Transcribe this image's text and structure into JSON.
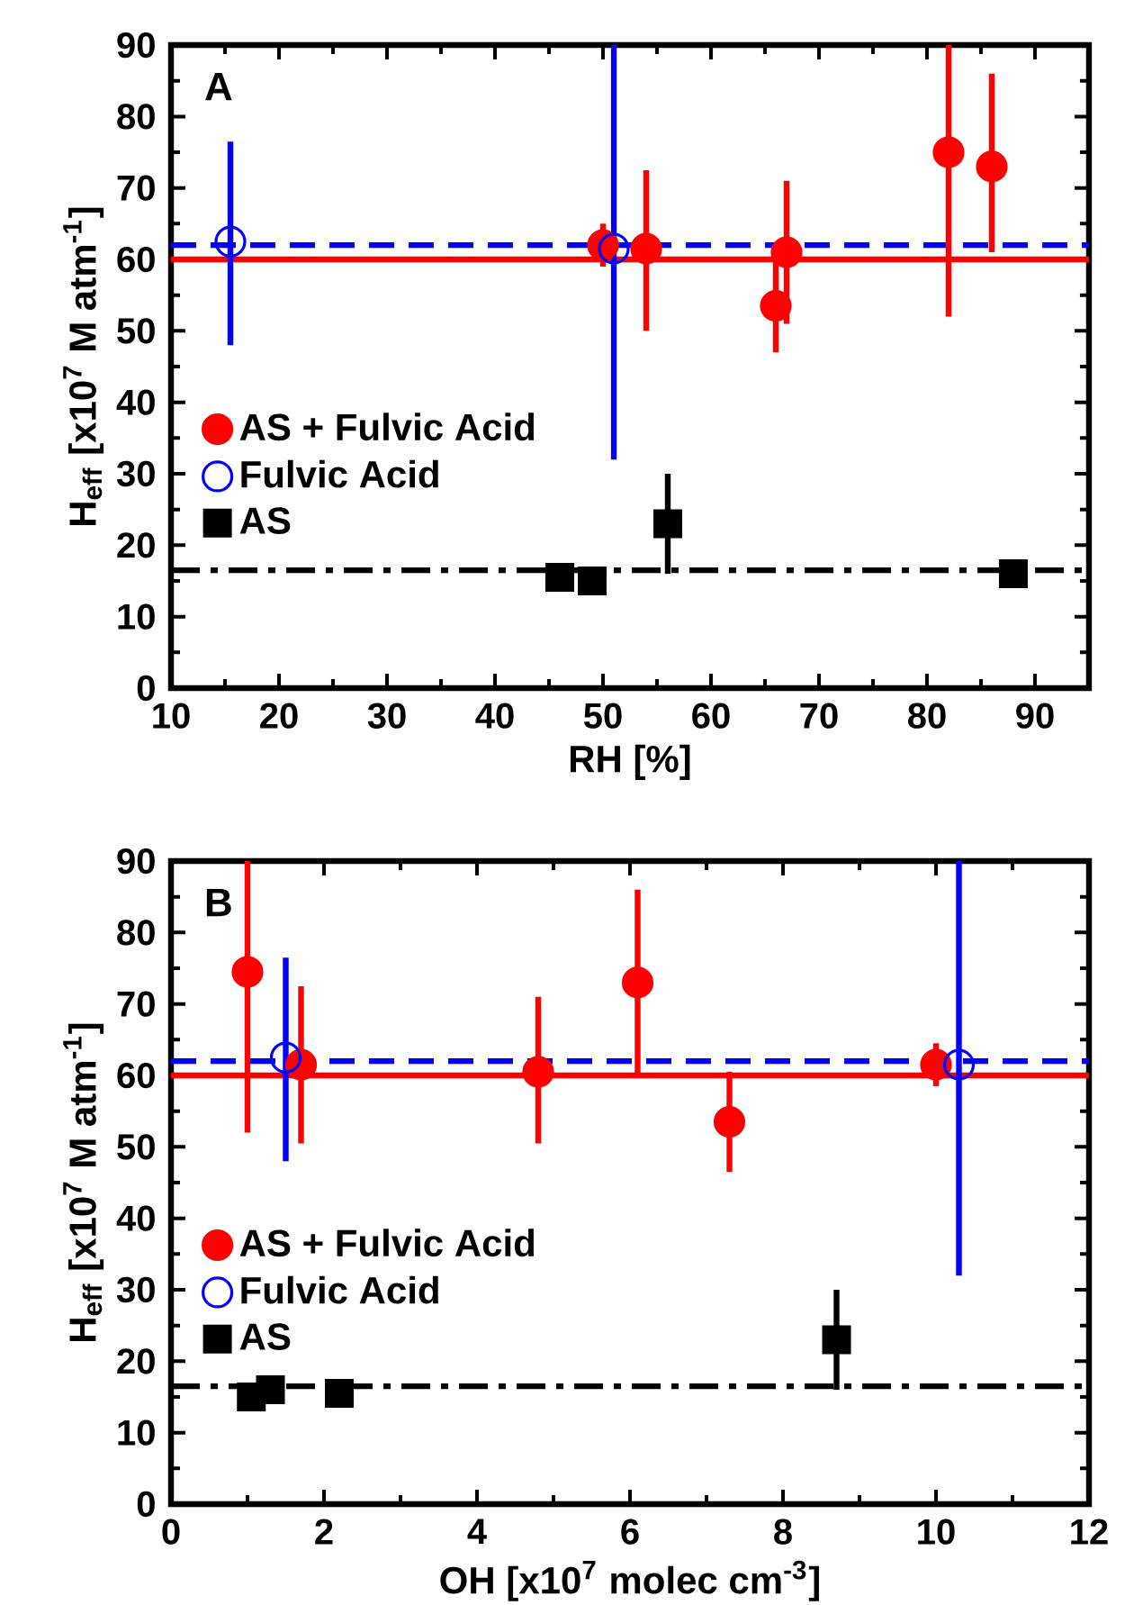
{
  "chart_data": [
    {
      "type": "scatter",
      "xlabel": "RH [%]",
      "ylabel": "H$_{eff}$ [x10$^{7}$ M atm$^{-1}$]",
      "annotations": [
        "A"
      ],
      "xlim": [
        10,
        95
      ],
      "ylim": [
        0,
        90
      ],
      "xticks": [
        10,
        20,
        30,
        40,
        50,
        60,
        70,
        80,
        90
      ],
      "yticks": [
        0,
        10,
        20,
        30,
        40,
        50,
        60,
        70,
        80,
        90
      ],
      "legend": "left",
      "series": [
        {
          "name": "AS + Fulvic Acid",
          "color": "#ff0000",
          "marker": "circle",
          "x": [
            50,
            54,
            66,
            67,
            82,
            86
          ],
          "values": [
            62,
            61.5,
            53.5,
            61,
            75,
            73
          ],
          "errors": [
            [
              59,
              65
            ],
            [
              50,
              72.5
            ],
            [
              47,
              61
            ],
            [
              51,
              71
            ],
            [
              52,
              90
            ],
            [
              61,
              86
            ]
          ]
        },
        {
          "name": "Fulvic Acid",
          "color": "#0000ff",
          "marker": "open circle",
          "x": [
            15.5,
            51
          ],
          "values": [
            62.5,
            61.5
          ],
          "errors": [
            [
              48,
              76.5
            ],
            [
              32,
              90
            ]
          ]
        },
        {
          "name": "AS",
          "color": "#000000",
          "marker": "square",
          "x": [
            46,
            49,
            56,
            88
          ],
          "values": [
            15.5,
            15,
            23,
            16
          ],
          "errors": [
            [
              14,
              17
            ],
            [
              13,
              17
            ],
            [
              16,
              30
            ],
            [
              14.5,
              17.5
            ]
          ]
        }
      ],
      "ref_lines": [
        {
          "axis": "y",
          "value": 60,
          "color": "#ff0000",
          "line_style": "solid"
        },
        {
          "axis": "y",
          "value": 62,
          "color": "#0000ff",
          "line_style": "dashed"
        },
        {
          "axis": "y",
          "value": 16.5,
          "color": "#000000",
          "line_style": "dashdot"
        }
      ]
    },
    {
      "type": "scatter",
      "xlabel": "OH [x10$^{7}$ molec cm$^{-3}$]",
      "ylabel": "H$_{eff}$ [x10$^{7}$ M atm$^{-1}$]",
      "annotations": [
        "B"
      ],
      "xlim": [
        0,
        12
      ],
      "ylim": [
        0,
        90
      ],
      "xticks": [
        0,
        2,
        4,
        6,
        8,
        10,
        12
      ],
      "yticks": [
        0,
        10,
        20,
        30,
        40,
        50,
        60,
        70,
        80,
        90
      ],
      "legend": "left",
      "series": [
        {
          "name": "AS + Fulvic Acid",
          "color": "#ff0000",
          "marker": "circle",
          "x": [
            1.0,
            1.7,
            4.8,
            6.1,
            7.3,
            10.0
          ],
          "values": [
            74.5,
            61.5,
            60.5,
            73,
            53.5,
            61.5
          ],
          "errors": [
            [
              52,
              90
            ],
            [
              50.5,
              72.5
            ],
            [
              50.5,
              71
            ],
            [
              60,
              86
            ],
            [
              46.5,
              60.5
            ],
            [
              58.5,
              64.5
            ]
          ]
        },
        {
          "name": "Fulvic Acid",
          "color": "#0000ff",
          "marker": "open circle",
          "x": [
            1.5,
            10.3
          ],
          "values": [
            62.5,
            61.5
          ],
          "errors": [
            [
              48,
              76.5
            ],
            [
              32,
              90
            ]
          ]
        },
        {
          "name": "AS",
          "color": "#000000",
          "marker": "square",
          "x": [
            1.05,
            1.3,
            2.2,
            8.7
          ],
          "values": [
            15,
            16,
            15.5,
            23
          ],
          "errors": [
            [
              13,
              16.5
            ],
            null,
            [
              14,
              17
            ],
            [
              16,
              30
            ]
          ]
        }
      ],
      "ref_lines": [
        {
          "axis": "y",
          "value": 60,
          "color": "#ff0000",
          "line_style": "solid"
        },
        {
          "axis": "y",
          "value": 62,
          "color": "#0000ff",
          "line_style": "dashed"
        },
        {
          "axis": "y",
          "value": 16.5,
          "color": "#000000",
          "line_style": "dashdot"
        }
      ]
    }
  ]
}
